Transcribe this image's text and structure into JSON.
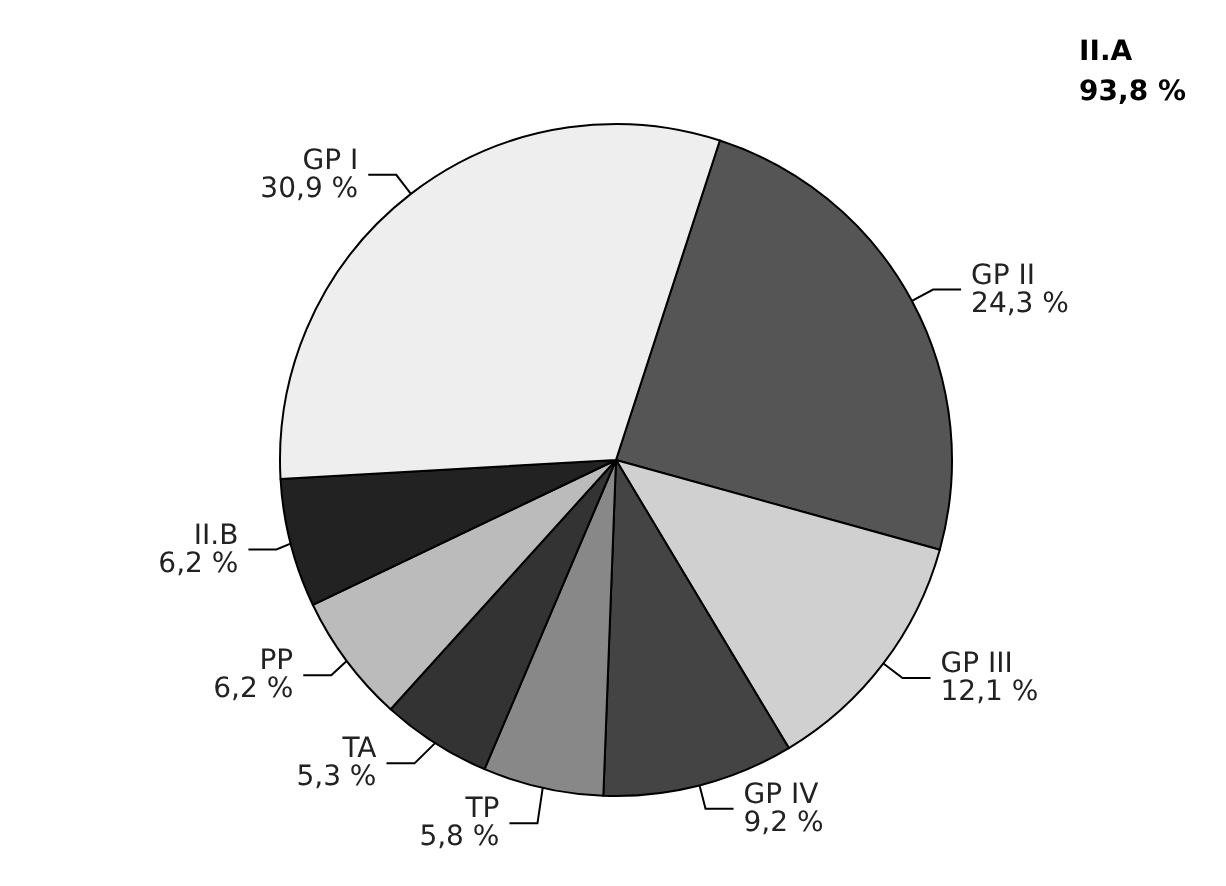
{
  "chart_data": {
    "type": "pie",
    "categories": [
      "GP II",
      "GP III",
      "GP IV",
      "TP",
      "TA",
      "PP",
      "II.B",
      "GP I"
    ],
    "values": [
      24.3,
      12.1,
      9.2,
      5.8,
      5.3,
      6.2,
      6.2,
      30.9
    ],
    "value_labels": [
      "24,3 %",
      "12,1 %",
      "9,2 %",
      "5,8 %",
      "5,3 %",
      "6,2 %",
      "6,2 %",
      "30,9 %"
    ],
    "colors": [
      "#555555",
      "#d0d0d0",
      "#444444",
      "#888888",
      "#333333",
      "#bbbbbb",
      "#222222",
      "#eeeeee"
    ],
    "annotations": [
      "II.A\n93,8 %"
    ],
    "legend": false
  }
}
